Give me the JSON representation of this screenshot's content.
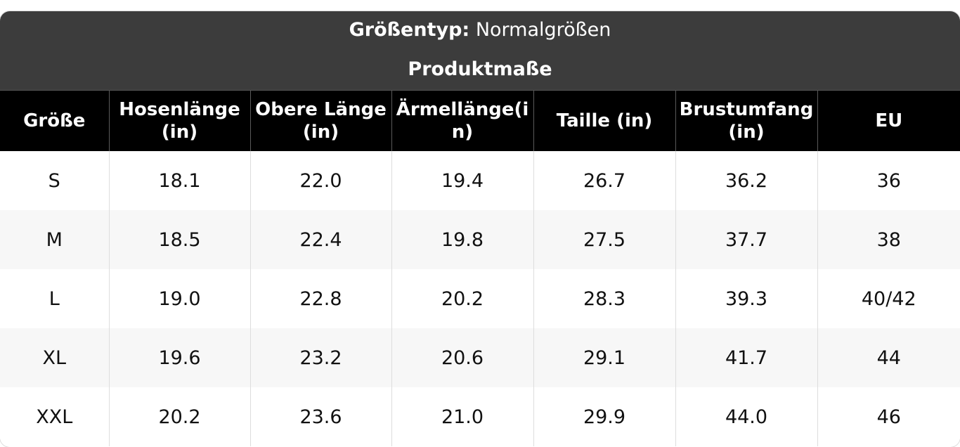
{
  "header": {
    "size_type_label": "Größentyp:",
    "size_type_value": "Normalgrößen",
    "measurements_title": "Produktmaße"
  },
  "table": {
    "columns": [
      "Größe",
      "Hosenlänge (in)",
      "Obere Länge(in)",
      "Ärmellänge(in)",
      "Taille (in)",
      "Brustumfang (in)",
      "EU"
    ],
    "rows": [
      [
        "S",
        "18.1",
        "22.0",
        "19.4",
        "26.7",
        "36.2",
        "36"
      ],
      [
        "M",
        "18.5",
        "22.4",
        "19.8",
        "27.5",
        "37.7",
        "38"
      ],
      [
        "L",
        "19.0",
        "22.8",
        "20.2",
        "28.3",
        "39.3",
        "40/42"
      ],
      [
        "XL",
        "19.6",
        "23.2",
        "20.6",
        "29.1",
        "41.7",
        "44"
      ],
      [
        "XXL",
        "20.2",
        "23.6",
        "21.0",
        "29.9",
        "44.0",
        "46"
      ]
    ]
  },
  "colors": {
    "header_background": "#3c3c3c",
    "column_header_background": "#000000",
    "alternate_row": "#f7f7f7"
  }
}
